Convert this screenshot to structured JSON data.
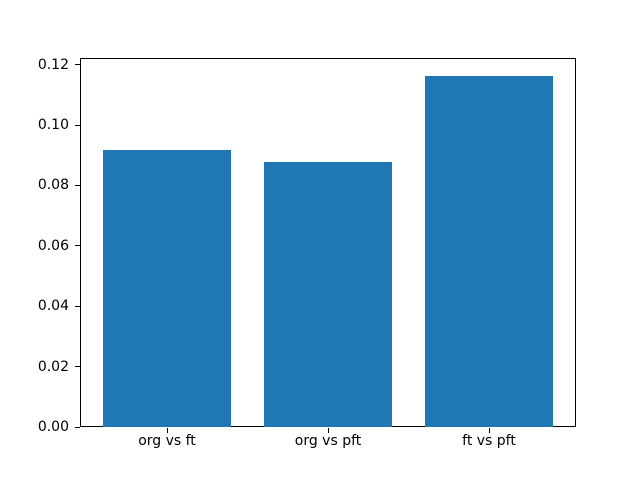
{
  "figure": {
    "background_color": "#ffffff",
    "spine_color": "#000000",
    "tick_color": "#000000",
    "title": ""
  },
  "chart_data": {
    "type": "bar",
    "title": "",
    "xlabel": "",
    "ylabel": "",
    "categories": [
      "org vs ft",
      "org vs pft",
      "ft vs pft"
    ],
    "values": [
      0.0918,
      0.0878,
      0.1164
    ],
    "bar_color": "#1f77b4",
    "bar_width": 0.8,
    "xlim": [
      -0.54,
      2.54
    ],
    "ylim": [
      0,
      0.1222
    ],
    "yticks": [
      0.0,
      0.02,
      0.04,
      0.06,
      0.08,
      0.1,
      0.12
    ],
    "ytick_decimals": 2,
    "grid": false,
    "legend": null
  }
}
